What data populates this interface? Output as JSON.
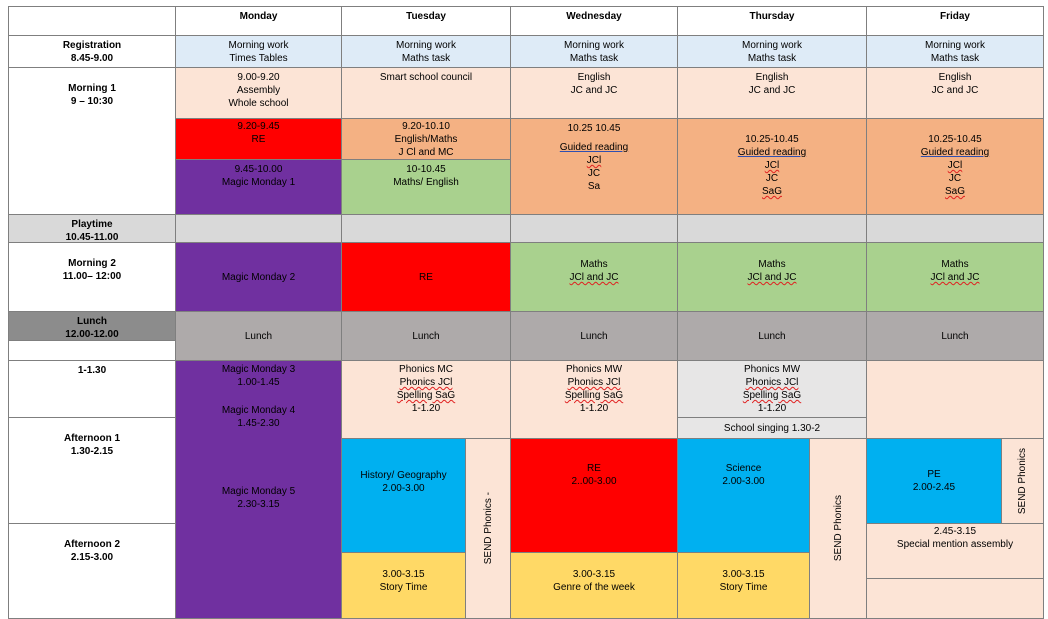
{
  "days": [
    "Monday",
    "Tuesday",
    "Wednesday",
    "Thursday",
    "Friday"
  ],
  "times": {
    "registration": [
      "Registration",
      "8.45-9.00"
    ],
    "morning1": [
      "Morning 1",
      "9 – 10:30"
    ],
    "playtime": [
      "Playtime",
      "10.45-11.00"
    ],
    "morning2": [
      "Morning 2",
      "11.00– 12:00"
    ],
    "lunch": [
      "Lunch",
      "12.00-12.00"
    ],
    "t1": [
      "1-1.30"
    ],
    "afternoon1": [
      "Afternoon 1",
      "1.30-2.15"
    ],
    "afternoon2": [
      "Afternoon 2",
      "2.15-3.00"
    ]
  },
  "registration": {
    "mon": [
      "Morning work",
      "Times Tables"
    ],
    "tue": [
      "Morning work",
      "Maths task"
    ],
    "wed": [
      "Morning work",
      "Maths task"
    ],
    "thu": [
      "Morning work",
      "Maths task"
    ],
    "fri": [
      "Morning work",
      "Maths task"
    ]
  },
  "morning1": {
    "mon_a": [
      "9.00-9.20",
      "Assembly",
      "Whole school"
    ],
    "mon_b": [
      "9.20-9.45",
      "RE"
    ],
    "mon_c": [
      "9.45-10.00",
      "Magic Monday 1"
    ],
    "tue_a": [
      "Smart school council"
    ],
    "tue_b": [
      "9.20-10.10",
      "English/Maths",
      "J Cl and MC"
    ],
    "tue_c": [
      "10-10.45",
      "Maths/ English"
    ],
    "wed_a": [
      "English",
      "JC and JC"
    ],
    "wed_b": [
      "10.25 10.45",
      "Guided reading",
      "JCl",
      "JC",
      "Sa"
    ],
    "thu_a": [
      "English",
      "JC and JC"
    ],
    "thu_b": [
      "10.25-10.45",
      "Guided reading",
      "JCl",
      "JC",
      "SaG"
    ],
    "fri_a": [
      "English",
      "JC and JC"
    ],
    "fri_b": [
      "10.25-10.45",
      "Guided reading",
      "JCl",
      "JC",
      "SaG"
    ]
  },
  "morning2": {
    "mon": "Magic Monday 2",
    "tue": "RE",
    "wed": [
      "Maths",
      "JCl and JC"
    ],
    "thu": [
      "Maths",
      "JCl and JC"
    ],
    "fri": [
      "Maths",
      "JCl and JC"
    ]
  },
  "lunch": [
    "Lunch",
    "Lunch",
    "Lunch",
    "Lunch",
    "Lunch"
  ],
  "afternoon": {
    "mon_a": [
      "Magic Monday 3",
      "1.00-1.45"
    ],
    "mon_b": [
      "Magic Monday 4",
      "1.45-2.30"
    ],
    "mon_c": [
      "Magic Monday 5",
      "2.30-3.15"
    ],
    "tue_a": [
      "Phonics MC",
      "Phonics JCl",
      "Spelling SaG",
      "1-1.20"
    ],
    "tue_b": [
      "History/ Geography",
      "2.00-3.00"
    ],
    "tue_c": [
      "3.00-3.15",
      "Story Time"
    ],
    "tue_send": "SEND Phonics -",
    "wed_a": [
      "Phonics MW",
      "Phonics JCl",
      "Spelling SaG",
      "1-1.20"
    ],
    "wed_b": [
      "RE",
      "2..00-3.00"
    ],
    "wed_c": [
      "3.00-3.15",
      "Genre of the week"
    ],
    "thu_a": [
      "Phonics MW",
      "Phonics JCl",
      "Spelling SaG",
      "1-1.20"
    ],
    "thu_b": "School singing 1.30-2",
    "thu_c": [
      "Science",
      "2.00-3.00"
    ],
    "thu_d": [
      "3.00-3.15",
      "Story Time"
    ],
    "thu_send": "SEND Phonics",
    "fri_b": [
      "PE",
      "2.00-2.45"
    ],
    "fri_send": "SEND Phonics",
    "fri_c": [
      "2.45-3.15",
      "Special mention assembly"
    ]
  }
}
